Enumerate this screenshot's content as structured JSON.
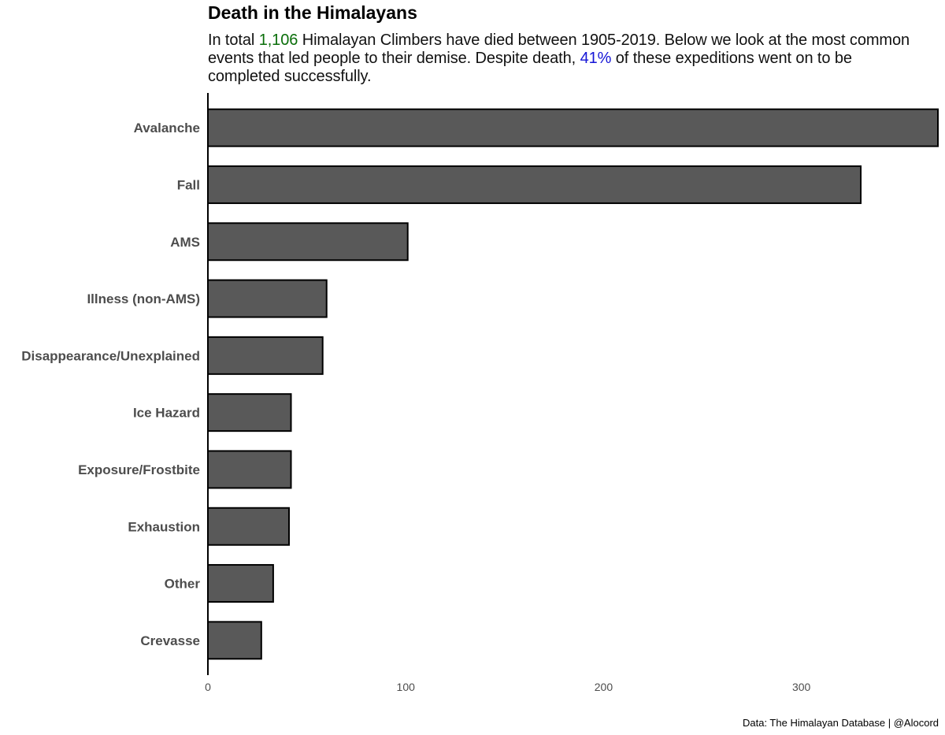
{
  "header": {
    "title": "Death in the Himalayans",
    "subtitle": {
      "part1": "In total ",
      "count": "1,106",
      "part2": " Himalayan Climbers have died between 1905-2019. Below we look at the most common events that led people to their demise. Despite death, ",
      "percent": "41%",
      "part3": " of these expeditions went on to be completed successfully."
    }
  },
  "footer": {
    "caption": "Data: The Himalayan Database | @Alocord"
  },
  "colors": {
    "bar_fill": "#595959",
    "bar_stroke": "#000000",
    "count_highlight": "#0a6e0a",
    "percent_highlight": "#1515d6"
  },
  "chart_data": {
    "type": "bar",
    "orientation": "horizontal",
    "categories": [
      "Avalanche",
      "Fall",
      "AMS",
      "Illness (non-AMS)",
      "Disappearance/Unexplained",
      "Ice Hazard",
      "Exposure/Frostbite",
      "Exhaustion",
      "Other",
      "Crevasse"
    ],
    "values": [
      369,
      330,
      101,
      60,
      58,
      42,
      42,
      41,
      33,
      27
    ],
    "xlim": [
      0,
      369
    ],
    "xticks": [
      0,
      100,
      200,
      300
    ],
    "grid": false
  }
}
